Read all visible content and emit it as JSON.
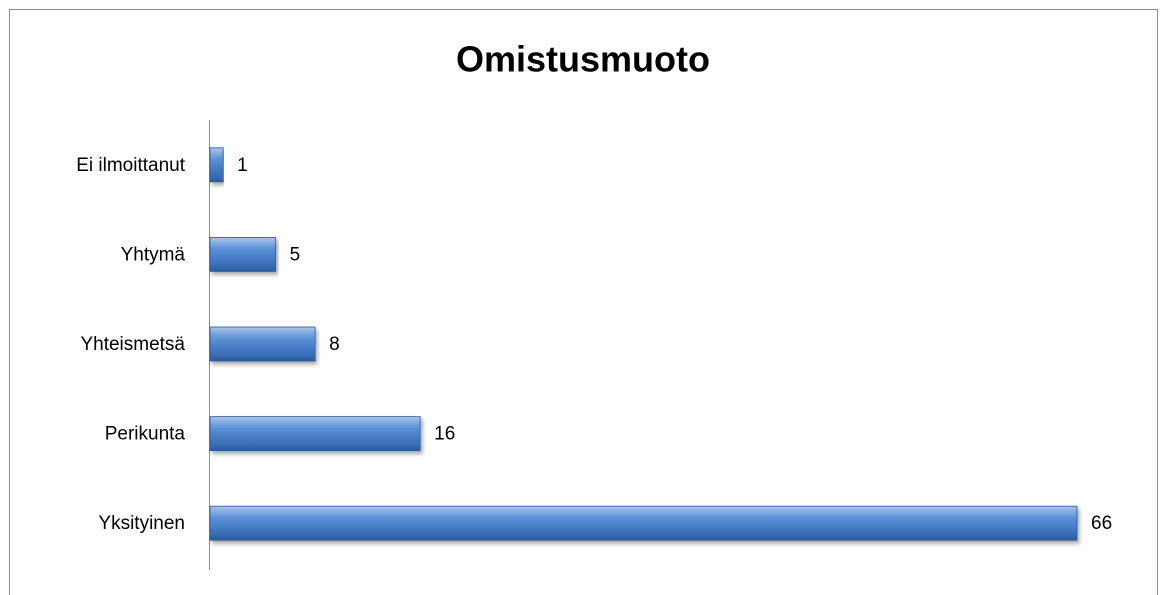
{
  "chart_data": {
    "type": "bar",
    "orientation": "horizontal",
    "title": "Omistusmuoto",
    "categories": [
      "Ei ilmoittanut",
      "Yhtymä",
      "Yhteismetsä",
      "Perikunta",
      "Yksityinen"
    ],
    "values": [
      1,
      5,
      8,
      16,
      66
    ],
    "color": "#4f81bd"
  }
}
